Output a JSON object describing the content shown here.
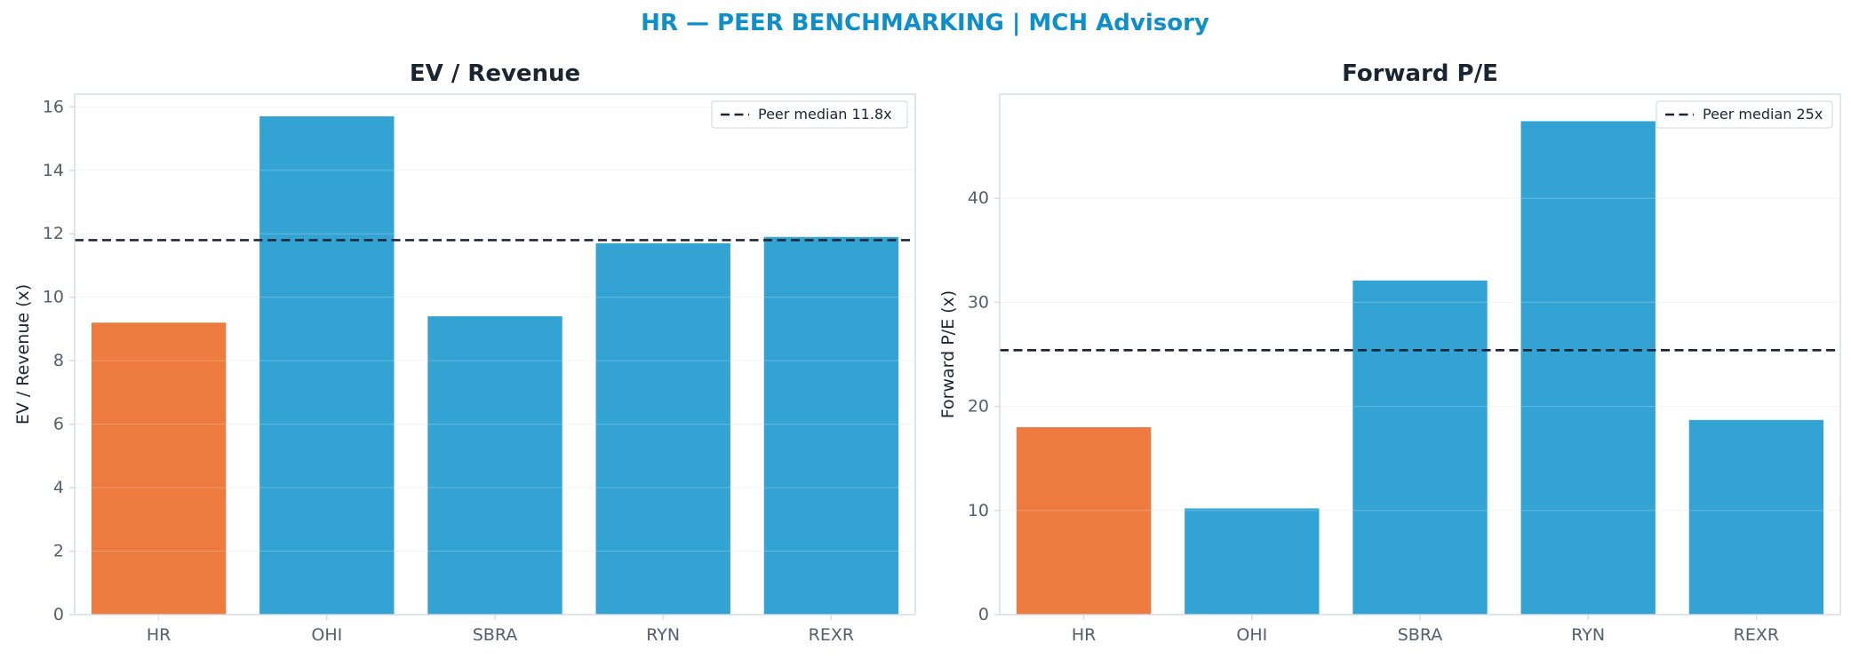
{
  "suptitle": "HR — PEER BENCHMARKING | MCH Advisory",
  "colors": {
    "title": "#0f8fc9",
    "subject_bar": "#ed7a3e",
    "peer_bar": "#33a3d3",
    "median_line": "#1a2533",
    "axis_text": "#52606f",
    "label_text": "#1a2533",
    "spine": "#d3dae2",
    "grid": "#eef1f4"
  },
  "chart_data": [
    {
      "type": "bar",
      "title": "EV / Revenue",
      "ylabel": "EV / Revenue (x)",
      "xlabel": "",
      "categories": [
        "HR",
        "OHI",
        "SBRA",
        "RYN",
        "REXR"
      ],
      "values": [
        9.2,
        15.7,
        9.4,
        11.7,
        11.9
      ],
      "highlight": "HR",
      "ylim": [
        0,
        16.4
      ],
      "yticks": [
        0,
        2,
        4,
        6,
        8,
        10,
        12,
        14,
        16
      ],
      "reference_line": {
        "value": 11.8,
        "label": "Peer median 11.8x",
        "style": "dashed"
      },
      "legend_position": "top-right",
      "grid": true
    },
    {
      "type": "bar",
      "title": "Forward P/E",
      "ylabel": "Forward P/E (x)",
      "xlabel": "",
      "categories": [
        "HR",
        "OHI",
        "SBRA",
        "RYN",
        "REXR"
      ],
      "values": [
        18.0,
        10.2,
        32.1,
        47.4,
        18.7
      ],
      "highlight": "HR",
      "ylim": [
        0,
        50
      ],
      "yticks": [
        0,
        10,
        20,
        30,
        40
      ],
      "reference_line": {
        "value": 25.4,
        "label": "Peer median 25x",
        "style": "dashed"
      },
      "legend_position": "top-right",
      "grid": true
    }
  ]
}
